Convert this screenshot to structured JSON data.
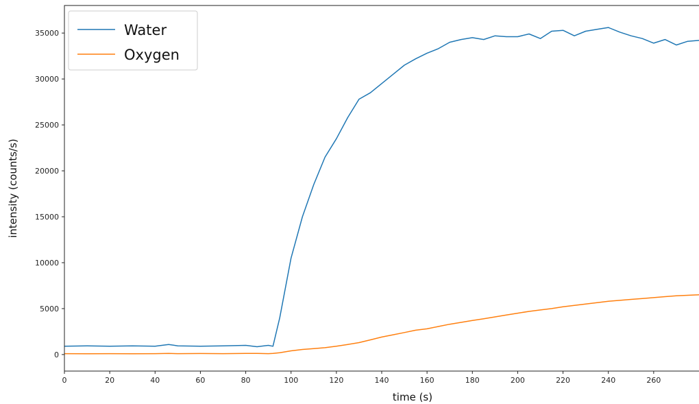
{
  "chart_data": {
    "type": "line",
    "title": "",
    "xlabel": "time (s)",
    "ylabel": "intensity (counts/s)",
    "xlim": [
      0,
      280
    ],
    "ylim": [
      -1800,
      38000
    ],
    "xticks": [
      0,
      20,
      40,
      60,
      80,
      100,
      120,
      140,
      160,
      180,
      200,
      220,
      240,
      260
    ],
    "yticks": [
      0,
      5000,
      10000,
      15000,
      20000,
      25000,
      30000,
      35000
    ],
    "grid": false,
    "legend": {
      "position": "top-left"
    },
    "x": [
      0,
      10,
      20,
      30,
      40,
      46,
      50,
      60,
      70,
      80,
      85,
      90,
      92,
      95,
      100,
      105,
      110,
      115,
      120,
      125,
      130,
      135,
      140,
      145,
      150,
      155,
      160,
      165,
      170,
      175,
      180,
      185,
      190,
      195,
      200,
      205,
      210,
      215,
      220,
      225,
      230,
      235,
      240,
      245,
      250,
      255,
      260,
      265,
      270,
      275,
      280
    ],
    "series": [
      {
        "name": "Water",
        "color": "#1f77b4",
        "values": [
          900,
          950,
          900,
          950,
          900,
          1100,
          950,
          900,
          950,
          1000,
          850,
          1000,
          900,
          4000,
          10500,
          15000,
          18500,
          21500,
          23500,
          25800,
          27800,
          28500,
          29500,
          30500,
          31500,
          32200,
          32800,
          33300,
          34000,
          34300,
          34500,
          34300,
          34700,
          34600,
          34600,
          34900,
          34400,
          35200,
          35300,
          34700,
          35200,
          35400,
          35600,
          35100,
          34700,
          34400,
          33900,
          34300,
          33700,
          34100,
          34200
        ]
      },
      {
        "name": "Oxygen",
        "color": "#ff7f0e",
        "values": [
          100,
          80,
          100,
          90,
          100,
          120,
          100,
          110,
          100,
          130,
          120,
          100,
          120,
          200,
          400,
          550,
          650,
          750,
          900,
          1100,
          1300,
          1600,
          1900,
          2150,
          2400,
          2650,
          2800,
          3050,
          3300,
          3500,
          3700,
          3900,
          4100,
          4300,
          4500,
          4700,
          4850,
          5000,
          5200,
          5350,
          5500,
          5650,
          5800,
          5900,
          6000,
          6100,
          6200,
          6300,
          6400,
          6450,
          6500
        ]
      }
    ]
  }
}
